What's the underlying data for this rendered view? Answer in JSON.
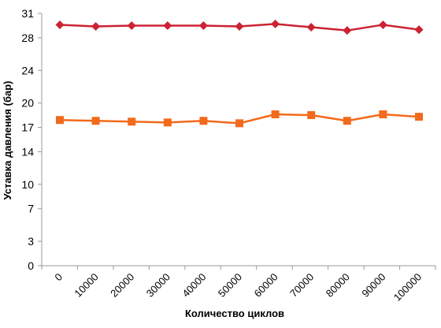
{
  "chart_data": {
    "type": "line",
    "title": "",
    "xlabel": "Количество циклов",
    "ylabel": "Уставка давления (бар)",
    "x_categories": [
      "0",
      "10000",
      "20000",
      "30000",
      "40000",
      "50000",
      "60000",
      "70000",
      "80000",
      "90000",
      "100000"
    ],
    "y_ticks": [
      "0",
      "3",
      "7",
      "10",
      "14",
      "17",
      "20",
      "24",
      "28",
      "31"
    ],
    "ylim": [
      0,
      31
    ],
    "grid": false,
    "legend": "none",
    "series": [
      {
        "color": "#cc2233",
        "marker": "diamond",
        "values": [
          29.6,
          29.4,
          29.5,
          29.5,
          29.5,
          29.4,
          29.7,
          29.3,
          28.9,
          29.6,
          29.0
        ]
      },
      {
        "color": "#f26a1b",
        "marker": "square",
        "values": [
          17.9,
          17.8,
          17.7,
          17.6,
          17.8,
          17.5,
          18.6,
          18.5,
          17.8,
          18.6,
          18.3
        ]
      }
    ]
  }
}
